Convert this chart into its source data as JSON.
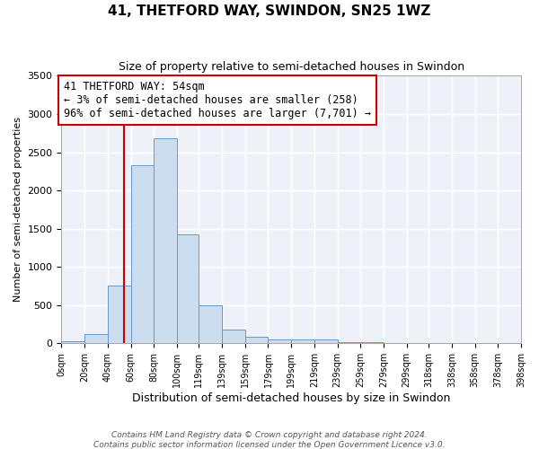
{
  "title": "41, THETFORD WAY, SWINDON, SN25 1WZ",
  "subtitle": "Size of property relative to semi-detached houses in Swindon",
  "xlabel": "Distribution of semi-detached houses by size in Swindon",
  "ylabel": "Number of semi-detached properties",
  "bar_color": "#ccddf0",
  "bar_edge_color": "#6699cc",
  "background_color": "#eef2f8",
  "grid_color": "#ffffff",
  "bin_edges": [
    0,
    20,
    40,
    60,
    80,
    100,
    119,
    139,
    159,
    179,
    199,
    219,
    239,
    259,
    279,
    299,
    318,
    338,
    358,
    378,
    398
  ],
  "bin_labels": [
    "0sqm",
    "20sqm",
    "40sqm",
    "60sqm",
    "80sqm",
    "100sqm",
    "119sqm",
    "139sqm",
    "159sqm",
    "179sqm",
    "199sqm",
    "219sqm",
    "239sqm",
    "259sqm",
    "279sqm",
    "299sqm",
    "318sqm",
    "338sqm",
    "358sqm",
    "378sqm",
    "398sqm"
  ],
  "counts": [
    30,
    120,
    760,
    2330,
    2680,
    1430,
    500,
    185,
    85,
    50,
    55,
    50,
    20,
    10,
    0,
    0,
    0,
    5,
    0,
    0
  ],
  "vline_x": 54,
  "vline_color": "#cc0000",
  "annotation_title": "41 THETFORD WAY: 54sqm",
  "annotation_line1": "← 3% of semi-detached houses are smaller (258)",
  "annotation_line2": "96% of semi-detached houses are larger (7,701) →",
  "annotation_box_color": "#ffffff",
  "annotation_box_edge": "#cc0000",
  "ylim": [
    0,
    3500
  ],
  "yticks": [
    0,
    500,
    1000,
    1500,
    2000,
    2500,
    3000,
    3500
  ],
  "footer1": "Contains HM Land Registry data © Crown copyright and database right 2024.",
  "footer2": "Contains public sector information licensed under the Open Government Licence v3.0."
}
